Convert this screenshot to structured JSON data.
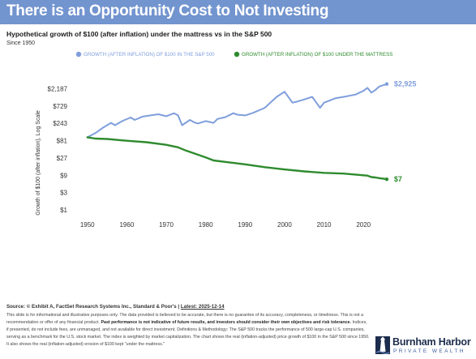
{
  "header": {
    "title": "There is an Opportunity Cost to Not Investing",
    "subtitle": "Hypothetical growth of $100 (after inflation) under the mattress vs in the S&P 500",
    "since": "Since 1950"
  },
  "colors": {
    "title_bar": "#7294cf",
    "sp500": "#7f9edc",
    "mattress": "#2e8b2e"
  },
  "chart_data": {
    "type": "line",
    "title": "Hypothetical growth of $100 (after inflation) under the mattress vs in the S&P 500",
    "xlabel": "",
    "ylabel": "Growth of $100 (after inflation), Log Scale",
    "yscale": "log",
    "xlim": [
      1948,
      2029
    ],
    "ylim": [
      1,
      6561
    ],
    "yticks": [
      1,
      3,
      9,
      27,
      81,
      243,
      729,
      2187
    ],
    "ytick_labels": [
      "$1",
      "$3",
      "$9",
      "$27",
      "$81",
      "$243",
      "$729",
      "$2,187"
    ],
    "xticks": [
      1950,
      1960,
      1970,
      1980,
      1990,
      2000,
      2010,
      2020
    ],
    "xtick_labels": [
      "1950",
      "1960",
      "1970",
      "1980",
      "1990",
      "2000",
      "2010",
      "2020"
    ],
    "grid": false,
    "legend_position": "top",
    "series": [
      {
        "name": "GROWTH (AFTER INFLATION) OF $100 IN THE S&P 500",
        "end_label": "$2,925",
        "x": [
          1950,
          1952,
          1954,
          1956,
          1957,
          1959,
          1961,
          1962,
          1964,
          1966,
          1968,
          1970,
          1972,
          1973,
          1974,
          1976,
          1977,
          1978,
          1980,
          1982,
          1983,
          1985,
          1987,
          1988,
          1990,
          1992,
          1995,
          1998,
          2000,
          2002,
          2003,
          2005,
          2007,
          2009,
          2010,
          2013,
          2015,
          2018,
          2019,
          2020,
          2021,
          2022,
          2023,
          2024,
          2025.9
        ],
        "y": [
          100,
          130,
          185,
          250,
          215,
          285,
          350,
          300,
          370,
          400,
          430,
          380,
          460,
          400,
          215,
          300,
          260,
          240,
          280,
          250,
          320,
          360,
          460,
          420,
          400,
          470,
          650,
          1300,
          1800,
          900,
          950,
          1100,
          1300,
          650,
          900,
          1200,
          1300,
          1500,
          1700,
          1900,
          2300,
          1700,
          2000,
          2500,
          2925
        ]
      },
      {
        "name": "GROWTH (AFTER INFLATION) OF $100 UNDER THE MATTRESS",
        "end_label": "$7",
        "x": [
          1950,
          1952,
          1955,
          1960,
          1965,
          1970,
          1973,
          1975,
          1980,
          1982,
          1985,
          1990,
          1995,
          2000,
          2005,
          2010,
          2015,
          2020,
          2021,
          2022,
          2023,
          2024,
          2025.9
        ],
        "y": [
          100,
          92,
          90,
          80,
          73,
          62,
          53,
          43,
          28,
          23,
          21,
          18,
          15,
          13,
          11.5,
          10.5,
          10,
          9,
          8.8,
          8,
          7.8,
          7.5,
          7
        ]
      }
    ]
  },
  "footer": {
    "source_prefix": "Source: © Exhibit A, FactSet Research Systems Inc., Standard & Poor's | ",
    "source_latest": "Latest: 2025-12-14",
    "disclaimer_1": "This slide is for informational and illustrative purposes only. The data provided is believed to be accurate, but there is no guarantee of its accuracy, completeness, or timeliness. This is not a recommendation or offer of any financial product. ",
    "disclaimer_bold_1": "Past performance is not indicative of future results, and investors should consider their own objectives and risk tolerance.",
    "disclaimer_2": " Indices, if presented, do not include fees, are unmanaged, and not available for direct investment. Definitions & Methodology: The S&P 500 tracks the performance of 500 large-cap U.S. companies, serving as a benchmark for the U.S. stock market. The index is weighted by market capitalization. The chart shows the real (inflation-adjusted) price growth of $100 in the S&P 500 since 1950. It also shows the real (inflation-adjusted) erosion of $100 kept \"under the mattress.\""
  },
  "logo": {
    "name": "Burnham Harbor",
    "tagline": "PRIVATE WEALTH"
  }
}
